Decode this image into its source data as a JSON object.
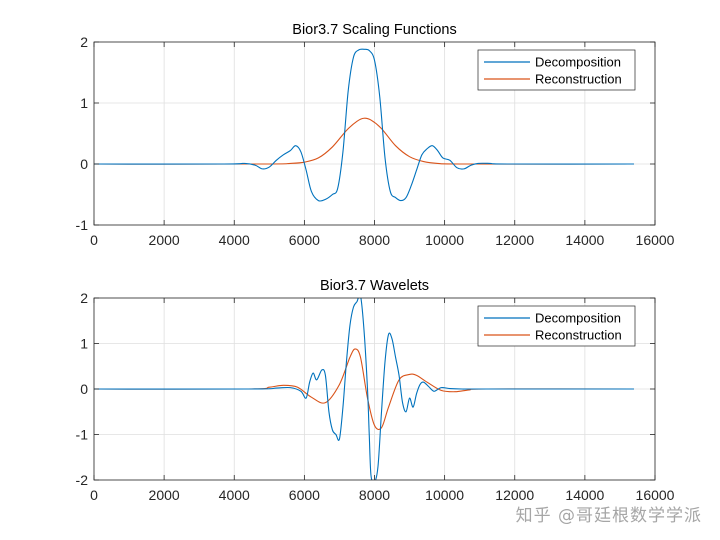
{
  "chart_data": [
    {
      "type": "line",
      "title": "Bior3.7 Scaling Functions",
      "xlabel": "",
      "ylabel": "",
      "xlim": [
        0,
        16000
      ],
      "ylim": [
        -1,
        2
      ],
      "xticks": [
        0,
        2000,
        4000,
        6000,
        8000,
        10000,
        12000,
        14000,
        16000
      ],
      "yticks": [
        -1,
        0,
        1,
        2
      ],
      "grid": true,
      "legend_position": "top-right",
      "series": [
        {
          "name": "Decomposition",
          "color": "#0072BD",
          "x": [
            0,
            3700,
            4300,
            4600,
            4800,
            5000,
            5200,
            5400,
            5600,
            5750,
            5900,
            6050,
            6200,
            6400,
            6600,
            6800,
            6950,
            7100,
            7250,
            7400,
            7550,
            7700,
            7850,
            8000,
            8150,
            8300,
            8450,
            8600,
            8750,
            8900,
            9050,
            9200,
            9350,
            9500,
            9650,
            9800,
            9950,
            10150,
            10350,
            10550,
            10750,
            10950,
            11300,
            11800,
            15400
          ],
          "y": [
            0,
            0,
            0.01,
            -0.02,
            -0.08,
            -0.05,
            0.06,
            0.15,
            0.22,
            0.3,
            0.2,
            -0.1,
            -0.45,
            -0.6,
            -0.58,
            -0.5,
            -0.4,
            0.2,
            1.2,
            1.75,
            1.87,
            1.88,
            1.86,
            1.7,
            1.1,
            0.1,
            -0.45,
            -0.55,
            -0.6,
            -0.55,
            -0.35,
            -0.1,
            0.15,
            0.25,
            0.3,
            0.22,
            0.1,
            0.06,
            -0.06,
            -0.08,
            -0.02,
            0.01,
            0.01,
            0,
            0
          ]
        },
        {
          "name": "Reconstruction",
          "color": "#D95319",
          "x": [
            0,
            4800,
            5600,
            6000,
            6400,
            6800,
            7200,
            7500,
            7700,
            7900,
            8200,
            8600,
            9000,
            9400,
            9800,
            10600,
            15400
          ],
          "y": [
            0,
            0,
            0.01,
            0.03,
            0.1,
            0.28,
            0.55,
            0.7,
            0.75,
            0.72,
            0.58,
            0.3,
            0.12,
            0.04,
            0.01,
            0,
            0
          ]
        }
      ]
    },
    {
      "type": "line",
      "title": "Bior3.7 Wavelets",
      "xlabel": "",
      "ylabel": "",
      "xlim": [
        0,
        16000
      ],
      "ylim": [
        -2,
        2
      ],
      "xticks": [
        0,
        2000,
        4000,
        6000,
        8000,
        10000,
        12000,
        14000,
        16000
      ],
      "yticks": [
        -2,
        -1,
        0,
        1,
        2
      ],
      "grid": true,
      "legend_position": "top-right",
      "series": [
        {
          "name": "Decomposition",
          "color": "#0072BD",
          "x": [
            0,
            4500,
            5200,
            5600,
            5900,
            6050,
            6150,
            6250,
            6350,
            6500,
            6600,
            6700,
            6800,
            6900,
            7000,
            7100,
            7200,
            7300,
            7400,
            7500,
            7600,
            7700,
            7800,
            7850,
            7900,
            8000,
            8100,
            8200,
            8300,
            8400,
            8500,
            8600,
            8700,
            8800,
            8900,
            9000,
            9100,
            9200,
            9300,
            9400,
            9550,
            9700,
            9900,
            10150,
            10500,
            11000,
            15400
          ],
          "y": [
            0,
            0,
            0.02,
            0.03,
            -0.05,
            -0.2,
            0.15,
            0.35,
            0.2,
            0.42,
            0.3,
            -0.5,
            -0.9,
            -1.0,
            -1.1,
            -0.4,
            0.6,
            1.4,
            1.8,
            1.92,
            2.05,
            1.3,
            0,
            -1.0,
            -1.9,
            -2.05,
            -1.7,
            -0.5,
            0.6,
            1.2,
            1.1,
            0.7,
            0.3,
            -0.3,
            -0.5,
            -0.2,
            -0.4,
            -0.1,
            0.1,
            0.15,
            0.05,
            -0.05,
            0.03,
            0.01,
            0,
            0,
            0
          ]
        },
        {
          "name": "Reconstruction",
          "color": "#D95319",
          "x": [
            0,
            4400,
            5000,
            5400,
            5800,
            6200,
            6600,
            7000,
            7300,
            7450,
            7600,
            7800,
            8000,
            8200,
            8400,
            8700,
            9000,
            9200,
            9500,
            9900,
            10300,
            10700,
            11200,
            15400
          ],
          "y": [
            0,
            0,
            0.04,
            0.08,
            0.04,
            -0.18,
            -0.3,
            0.1,
            0.7,
            0.88,
            0.7,
            -0.2,
            -0.8,
            -0.85,
            -0.4,
            0.2,
            0.32,
            0.3,
            0.15,
            -0.03,
            -0.06,
            -0.02,
            0,
            0
          ]
        }
      ]
    }
  ],
  "watermark": "知乎 @哥廷根数学学派"
}
